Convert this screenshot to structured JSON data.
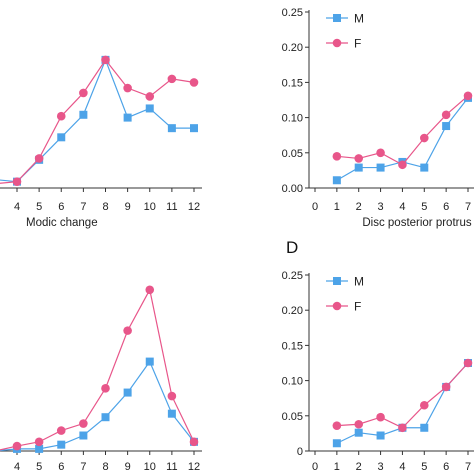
{
  "colors": {
    "M": "#4da3e8",
    "F": "#e8568a",
    "axis": "#333333"
  },
  "panel_labels": {
    "D": "D"
  },
  "chart_data": [
    {
      "id": "top-left",
      "type": "line",
      "xlabel": "Modic change",
      "x": [
        3,
        4,
        5,
        6,
        7,
        8,
        9,
        10,
        11,
        12
      ],
      "x_ticks": [
        "4",
        "5",
        "6",
        "7",
        "8",
        "9",
        "10",
        "11",
        "12"
      ],
      "series": [
        {
          "key": "M",
          "marker": "square",
          "values": [
            0.012,
            0.009,
            0.04,
            0.072,
            0.104,
            0.182,
            0.1,
            0.113,
            0.085,
            0.085
          ]
        },
        {
          "key": "F",
          "marker": "circle",
          "values": [
            0.006,
            0.009,
            0.042,
            0.102,
            0.135,
            0.182,
            0.142,
            0.13,
            0.155,
            0.15
          ]
        }
      ]
    },
    {
      "id": "top-right",
      "type": "line",
      "xlabel": "Disc posterior protrus",
      "x": [
        1,
        2,
        3,
        4,
        5,
        6,
        7
      ],
      "x_ticks": [
        "0",
        "1",
        "2",
        "3",
        "4",
        "5",
        "6",
        "7"
      ],
      "ylim": [
        0,
        0.25
      ],
      "y_ticks": [
        "0.00",
        "0.05",
        "0.10",
        "0.15",
        "0.20",
        "0.25"
      ],
      "legend": [
        "M",
        "F"
      ],
      "series": [
        {
          "key": "M",
          "marker": "square",
          "values": [
            0.011,
            0.029,
            0.029,
            0.037,
            0.029,
            0.088,
            0.128
          ]
        },
        {
          "key": "F",
          "marker": "circle",
          "values": [
            0.045,
            0.042,
            0.05,
            0.033,
            0.071,
            0.104,
            0.131
          ]
        }
      ]
    },
    {
      "id": "bottom-left",
      "type": "line",
      "x": [
        3,
        4,
        5,
        6,
        7,
        8,
        9,
        10,
        11,
        12
      ],
      "x_ticks": [
        "4",
        "5",
        "6",
        "7",
        "8",
        "9",
        "10",
        "11",
        "12"
      ],
      "series": [
        {
          "key": "M",
          "marker": "square",
          "values": [
            0.0,
            0.003,
            0.003,
            0.009,
            0.022,
            0.048,
            0.083,
            0.127,
            0.053,
            0.013
          ]
        },
        {
          "key": "F",
          "marker": "circle",
          "values": [
            0.0,
            0.007,
            0.013,
            0.029,
            0.039,
            0.089,
            0.171,
            0.229,
            0.078,
            0.013
          ]
        }
      ]
    },
    {
      "id": "bottom-right",
      "type": "line",
      "x": [
        1,
        2,
        3,
        4,
        5,
        6,
        7
      ],
      "x_ticks": [
        "0",
        "1",
        "2",
        "3",
        "4",
        "5",
        "6",
        "7"
      ],
      "ylim": [
        0,
        0.25
      ],
      "y_ticks": [
        "0",
        "0.05",
        "0.10",
        "0.15",
        "0.20",
        "0.25"
      ],
      "legend": [
        "M",
        "F"
      ],
      "series": [
        {
          "key": "M",
          "marker": "square",
          "values": [
            0.011,
            0.026,
            0.022,
            0.033,
            0.033,
            0.091,
            0.125
          ]
        },
        {
          "key": "F",
          "marker": "circle",
          "values": [
            0.036,
            0.038,
            0.048,
            0.033,
            0.065,
            0.091,
            0.125
          ]
        }
      ]
    }
  ]
}
